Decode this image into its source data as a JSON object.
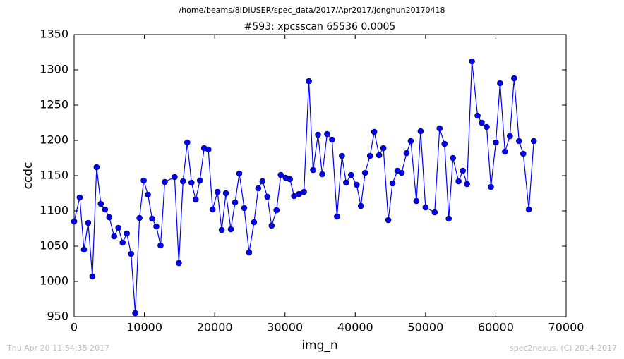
{
  "chart_data": {
    "type": "line",
    "suptitle": "/home/beams/8IDIUSER/spec_data/2017/Apr2017/jonghun20170418",
    "title": "#593: xpcsscan 65536 0.0005",
    "x_label": "img_n",
    "y_label": "ccdc",
    "footer_left": "Thu Apr 20 11:54:35 2017",
    "footer_right": "spec2nexus, (C) 2014-2017",
    "xlim": [
      0,
      70000
    ],
    "xticks": [
      0,
      10000,
      20000,
      30000,
      40000,
      50000,
      60000,
      70000
    ],
    "ylim": [
      950,
      1350
    ],
    "yticks": [
      950,
      1000,
      1050,
      1100,
      1150,
      1200,
      1250,
      1300,
      1350
    ],
    "grid": false,
    "series": [
      {
        "color": "#0000ff",
        "x": [
          0,
          800,
          1400,
          2000,
          2600,
          3200,
          3800,
          4400,
          5000,
          5700,
          6300,
          6900,
          7500,
          8100,
          8700,
          9300,
          9900,
          10500,
          11100,
          11700,
          12300,
          12900,
          14300,
          14900,
          15500,
          16100,
          16700,
          17300,
          17900,
          18500,
          19100,
          19700,
          20400,
          21000,
          21600,
          22300,
          22900,
          23500,
          24200,
          24900,
          25600,
          26200,
          26800,
          27500,
          28100,
          28800,
          29400,
          30100,
          30700,
          31300,
          32000,
          32700,
          33400,
          34000,
          34700,
          35300,
          36000,
          36700,
          37400,
          38100,
          38700,
          39400,
          40200,
          40800,
          41400,
          42100,
          42700,
          43400,
          44000,
          44700,
          45300,
          46000,
          46600,
          47300,
          47900,
          48700,
          49300,
          50000,
          51300,
          52000,
          52700,
          53300,
          53900,
          54700,
          55300,
          55900,
          56600,
          57400,
          58000,
          58700,
          59300,
          60000,
          60600,
          61300,
          62000,
          62600,
          63300,
          63900,
          64700,
          65400
        ],
        "values": [
          1085,
          1119,
          1045,
          1083,
          1007,
          1162,
          1110,
          1102,
          1091,
          1064,
          1076,
          1055,
          1068,
          1039,
          955,
          1090,
          1143,
          1123,
          1089,
          1078,
          1051,
          1141,
          1148,
          1026,
          1142,
          1197,
          1140,
          1116,
          1143,
          1189,
          1187,
          1102,
          1127,
          1073,
          1125,
          1074,
          1112,
          1153,
          1104,
          1041,
          1084,
          1132,
          1142,
          1120,
          1079,
          1101,
          1151,
          1147,
          1145,
          1121,
          1124,
          1127,
          1284,
          1158,
          1208,
          1152,
          1209,
          1201,
          1092,
          1178,
          1140,
          1151,
          1137,
          1107,
          1154,
          1178,
          1212,
          1179,
          1189,
          1087,
          1139,
          1157,
          1154,
          1182,
          1199,
          1114,
          1213,
          1105,
          1098,
          1217,
          1195,
          1089,
          1175,
          1142,
          1157,
          1138,
          1312,
          1235,
          1225,
          1219,
          1134,
          1197,
          1281,
          1184,
          1206,
          1288,
          1199,
          1181,
          1102,
          1199
        ]
      }
    ]
  }
}
